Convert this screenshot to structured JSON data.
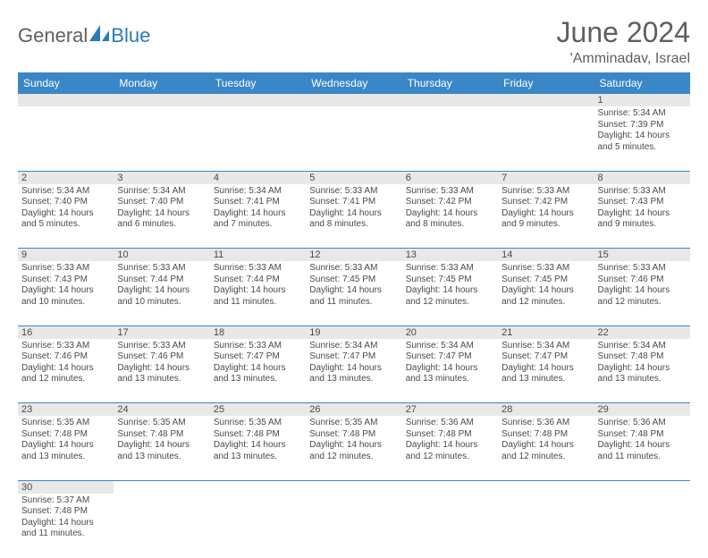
{
  "logo": {
    "part1": "General",
    "part2": "Blue"
  },
  "title": "June 2024",
  "location": "'Amminadav, Israel",
  "weekdays": [
    "Sunday",
    "Monday",
    "Tuesday",
    "Wednesday",
    "Thursday",
    "Friday",
    "Saturday"
  ],
  "colors": {
    "header_bg": "#3a87c8",
    "header_text": "#ffffff",
    "daynum_bg": "#e8e8e8",
    "text": "#4a4a4a",
    "title_text": "#5f5f5f",
    "logo_blue": "#2a7ab8",
    "row_border": "#3a87c8"
  },
  "fonts": {
    "title_size_pt": 24,
    "location_size_pt": 12,
    "weekday_size_pt": 9,
    "daynum_size_pt": 8,
    "cell_size_pt": 7.5
  },
  "weeks": [
    [
      null,
      null,
      null,
      null,
      null,
      null,
      {
        "n": "1",
        "sr": "Sunrise: 5:34 AM",
        "ss": "Sunset: 7:39 PM",
        "d1": "Daylight: 14 hours",
        "d2": "and 5 minutes."
      }
    ],
    [
      {
        "n": "2",
        "sr": "Sunrise: 5:34 AM",
        "ss": "Sunset: 7:40 PM",
        "d1": "Daylight: 14 hours",
        "d2": "and 5 minutes."
      },
      {
        "n": "3",
        "sr": "Sunrise: 5:34 AM",
        "ss": "Sunset: 7:40 PM",
        "d1": "Daylight: 14 hours",
        "d2": "and 6 minutes."
      },
      {
        "n": "4",
        "sr": "Sunrise: 5:34 AM",
        "ss": "Sunset: 7:41 PM",
        "d1": "Daylight: 14 hours",
        "d2": "and 7 minutes."
      },
      {
        "n": "5",
        "sr": "Sunrise: 5:33 AM",
        "ss": "Sunset: 7:41 PM",
        "d1": "Daylight: 14 hours",
        "d2": "and 8 minutes."
      },
      {
        "n": "6",
        "sr": "Sunrise: 5:33 AM",
        "ss": "Sunset: 7:42 PM",
        "d1": "Daylight: 14 hours",
        "d2": "and 8 minutes."
      },
      {
        "n": "7",
        "sr": "Sunrise: 5:33 AM",
        "ss": "Sunset: 7:42 PM",
        "d1": "Daylight: 14 hours",
        "d2": "and 9 minutes."
      },
      {
        "n": "8",
        "sr": "Sunrise: 5:33 AM",
        "ss": "Sunset: 7:43 PM",
        "d1": "Daylight: 14 hours",
        "d2": "and 9 minutes."
      }
    ],
    [
      {
        "n": "9",
        "sr": "Sunrise: 5:33 AM",
        "ss": "Sunset: 7:43 PM",
        "d1": "Daylight: 14 hours",
        "d2": "and 10 minutes."
      },
      {
        "n": "10",
        "sr": "Sunrise: 5:33 AM",
        "ss": "Sunset: 7:44 PM",
        "d1": "Daylight: 14 hours",
        "d2": "and 10 minutes."
      },
      {
        "n": "11",
        "sr": "Sunrise: 5:33 AM",
        "ss": "Sunset: 7:44 PM",
        "d1": "Daylight: 14 hours",
        "d2": "and 11 minutes."
      },
      {
        "n": "12",
        "sr": "Sunrise: 5:33 AM",
        "ss": "Sunset: 7:45 PM",
        "d1": "Daylight: 14 hours",
        "d2": "and 11 minutes."
      },
      {
        "n": "13",
        "sr": "Sunrise: 5:33 AM",
        "ss": "Sunset: 7:45 PM",
        "d1": "Daylight: 14 hours",
        "d2": "and 12 minutes."
      },
      {
        "n": "14",
        "sr": "Sunrise: 5:33 AM",
        "ss": "Sunset: 7:45 PM",
        "d1": "Daylight: 14 hours",
        "d2": "and 12 minutes."
      },
      {
        "n": "15",
        "sr": "Sunrise: 5:33 AM",
        "ss": "Sunset: 7:46 PM",
        "d1": "Daylight: 14 hours",
        "d2": "and 12 minutes."
      }
    ],
    [
      {
        "n": "16",
        "sr": "Sunrise: 5:33 AM",
        "ss": "Sunset: 7:46 PM",
        "d1": "Daylight: 14 hours",
        "d2": "and 12 minutes."
      },
      {
        "n": "17",
        "sr": "Sunrise: 5:33 AM",
        "ss": "Sunset: 7:46 PM",
        "d1": "Daylight: 14 hours",
        "d2": "and 13 minutes."
      },
      {
        "n": "18",
        "sr": "Sunrise: 5:33 AM",
        "ss": "Sunset: 7:47 PM",
        "d1": "Daylight: 14 hours",
        "d2": "and 13 minutes."
      },
      {
        "n": "19",
        "sr": "Sunrise: 5:34 AM",
        "ss": "Sunset: 7:47 PM",
        "d1": "Daylight: 14 hours",
        "d2": "and 13 minutes."
      },
      {
        "n": "20",
        "sr": "Sunrise: 5:34 AM",
        "ss": "Sunset: 7:47 PM",
        "d1": "Daylight: 14 hours",
        "d2": "and 13 minutes."
      },
      {
        "n": "21",
        "sr": "Sunrise: 5:34 AM",
        "ss": "Sunset: 7:47 PM",
        "d1": "Daylight: 14 hours",
        "d2": "and 13 minutes."
      },
      {
        "n": "22",
        "sr": "Sunrise: 5:34 AM",
        "ss": "Sunset: 7:48 PM",
        "d1": "Daylight: 14 hours",
        "d2": "and 13 minutes."
      }
    ],
    [
      {
        "n": "23",
        "sr": "Sunrise: 5:35 AM",
        "ss": "Sunset: 7:48 PM",
        "d1": "Daylight: 14 hours",
        "d2": "and 13 minutes."
      },
      {
        "n": "24",
        "sr": "Sunrise: 5:35 AM",
        "ss": "Sunset: 7:48 PM",
        "d1": "Daylight: 14 hours",
        "d2": "and 13 minutes."
      },
      {
        "n": "25",
        "sr": "Sunrise: 5:35 AM",
        "ss": "Sunset: 7:48 PM",
        "d1": "Daylight: 14 hours",
        "d2": "and 13 minutes."
      },
      {
        "n": "26",
        "sr": "Sunrise: 5:35 AM",
        "ss": "Sunset: 7:48 PM",
        "d1": "Daylight: 14 hours",
        "d2": "and 12 minutes."
      },
      {
        "n": "27",
        "sr": "Sunrise: 5:36 AM",
        "ss": "Sunset: 7:48 PM",
        "d1": "Daylight: 14 hours",
        "d2": "and 12 minutes."
      },
      {
        "n": "28",
        "sr": "Sunrise: 5:36 AM",
        "ss": "Sunset: 7:48 PM",
        "d1": "Daylight: 14 hours",
        "d2": "and 12 minutes."
      },
      {
        "n": "29",
        "sr": "Sunrise: 5:36 AM",
        "ss": "Sunset: 7:48 PM",
        "d1": "Daylight: 14 hours",
        "d2": "and 11 minutes."
      }
    ],
    [
      {
        "n": "30",
        "sr": "Sunrise: 5:37 AM",
        "ss": "Sunset: 7:48 PM",
        "d1": "Daylight: 14 hours",
        "d2": "and 11 minutes."
      },
      null,
      null,
      null,
      null,
      null,
      null
    ]
  ]
}
